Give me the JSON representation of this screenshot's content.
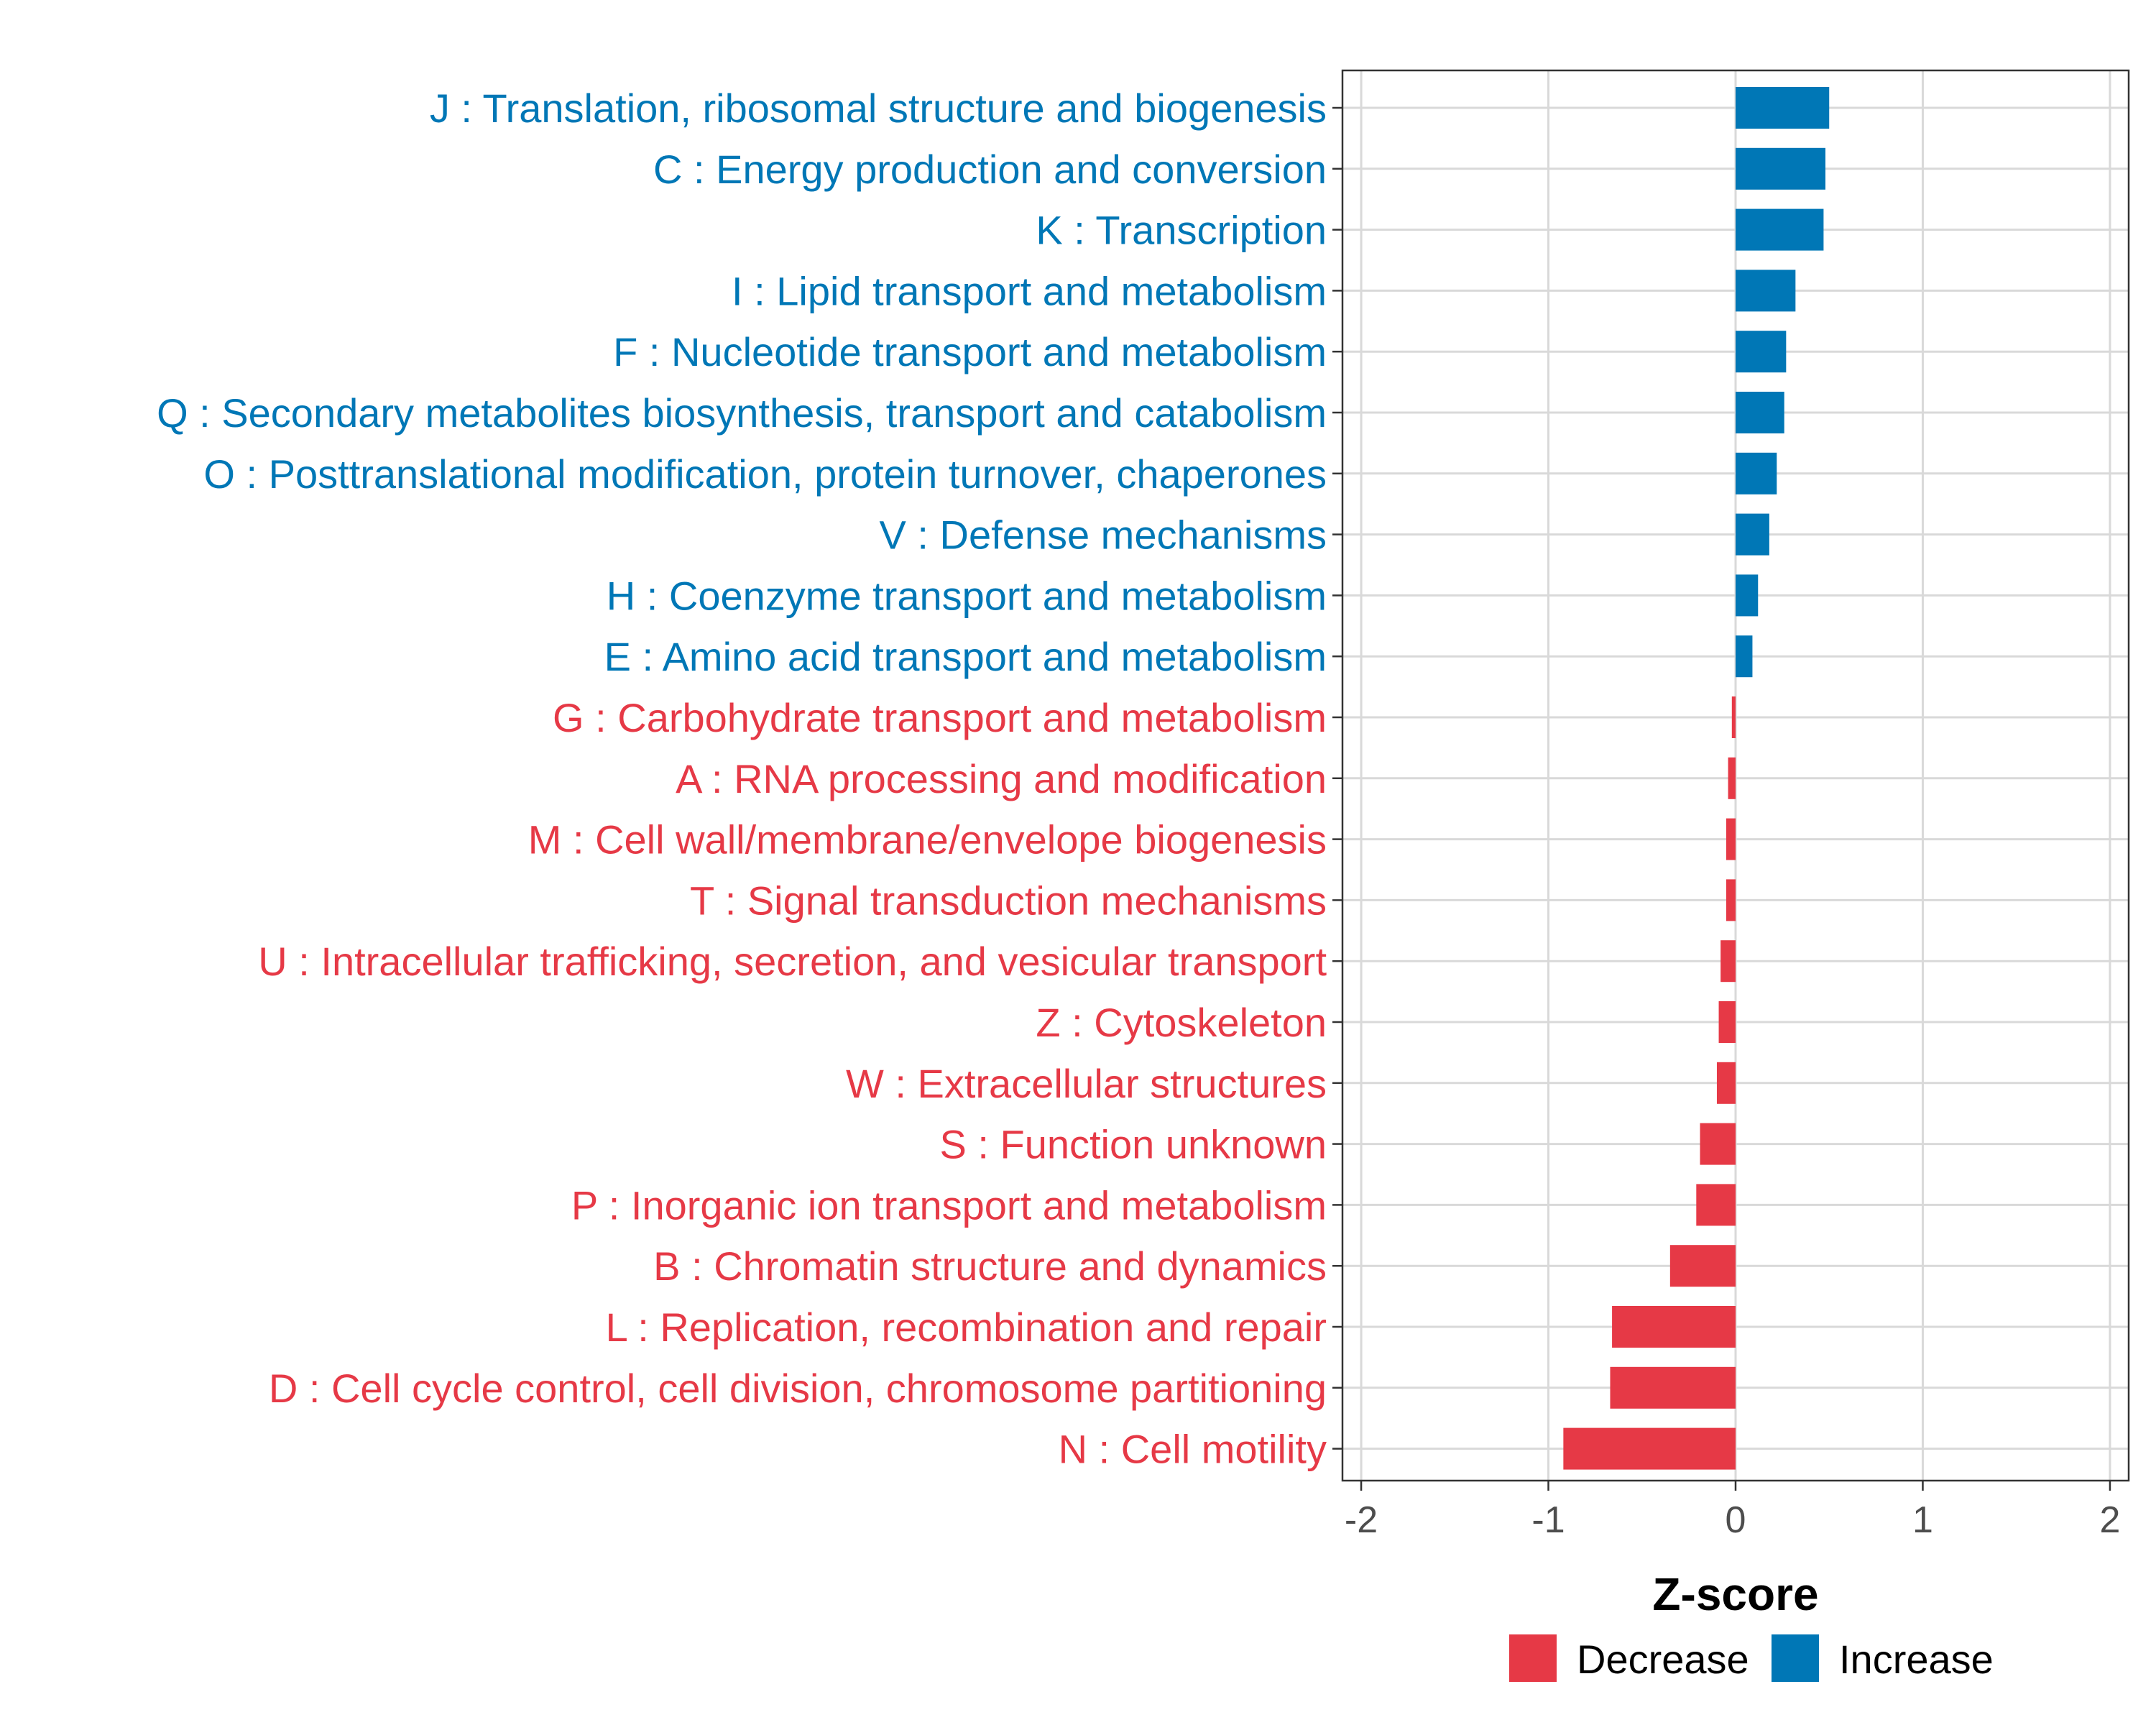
{
  "chart_data": {
    "type": "bar",
    "orientation": "horizontal",
    "title": "",
    "xlabel": "Z-score",
    "ylabel": "",
    "xlim": [
      -2.1,
      2.1
    ],
    "xticks": [
      -2,
      -1,
      0,
      1,
      2
    ],
    "xtick_labels": [
      "-2",
      "-1",
      "0",
      "1",
      "2"
    ],
    "grid": true,
    "legend_position": "bottom",
    "colors": {
      "Decrease": "#e63946",
      "Increase": "#0077b6"
    },
    "legend": [
      {
        "name": "Decrease",
        "color": "#e63946"
      },
      {
        "name": "Increase",
        "color": "#0077b6"
      }
    ],
    "categories": [
      "J : Translation, ribosomal structure and biogenesis",
      "C : Energy production and conversion",
      "K : Transcription",
      "I : Lipid transport and metabolism",
      "F : Nucleotide transport and metabolism",
      "Q : Secondary metabolites biosynthesis, transport and catabolism",
      "O : Posttranslational modification, protein turnover, chaperones",
      "V : Defense mechanisms",
      "H : Coenzyme transport and metabolism",
      "E : Amino acid transport and metabolism",
      "G : Carbohydrate transport and metabolism",
      "A : RNA processing and modification",
      "M : Cell wall/membrane/envelope biogenesis",
      "T : Signal transduction mechanisms",
      "U : Intracellular trafficking, secretion, and vesicular transport",
      "Z : Cytoskeleton",
      "W : Extracellular structures",
      "S : Function unknown",
      "P : Inorganic ion transport and metabolism",
      "B : Chromatin structure and dynamics",
      "L : Replication, recombination and repair",
      "D : Cell cycle control, cell division, chromosome partitioning",
      "N : Cell motility"
    ],
    "values": [
      0.5,
      0.48,
      0.47,
      0.32,
      0.27,
      0.26,
      0.22,
      0.18,
      0.12,
      0.09,
      -0.02,
      -0.04,
      -0.05,
      -0.05,
      -0.08,
      -0.09,
      -0.1,
      -0.19,
      -0.21,
      -0.35,
      -0.66,
      -0.67,
      -0.92
    ],
    "groups": [
      "Increase",
      "Increase",
      "Increase",
      "Increase",
      "Increase",
      "Increase",
      "Increase",
      "Increase",
      "Increase",
      "Increase",
      "Decrease",
      "Decrease",
      "Decrease",
      "Decrease",
      "Decrease",
      "Decrease",
      "Decrease",
      "Decrease",
      "Decrease",
      "Decrease",
      "Decrease",
      "Decrease",
      "Decrease"
    ]
  }
}
